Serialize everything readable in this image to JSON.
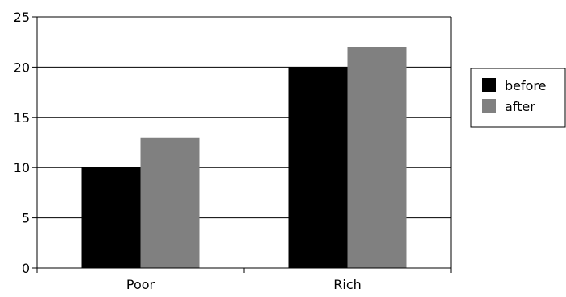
{
  "chart_data": {
    "type": "bar",
    "title": "",
    "xlabel": "",
    "ylabel": "",
    "categories": [
      "Poor",
      "Rich"
    ],
    "series": [
      {
        "name": "before",
        "values": [
          10,
          20
        ],
        "color": "#000000"
      },
      {
        "name": "after",
        "values": [
          13,
          22
        ],
        "color": "#808080"
      }
    ],
    "ylim": [
      0,
      25
    ],
    "yticks": [
      0,
      5,
      10,
      15,
      20,
      25
    ],
    "grid": true,
    "legend": "right"
  }
}
